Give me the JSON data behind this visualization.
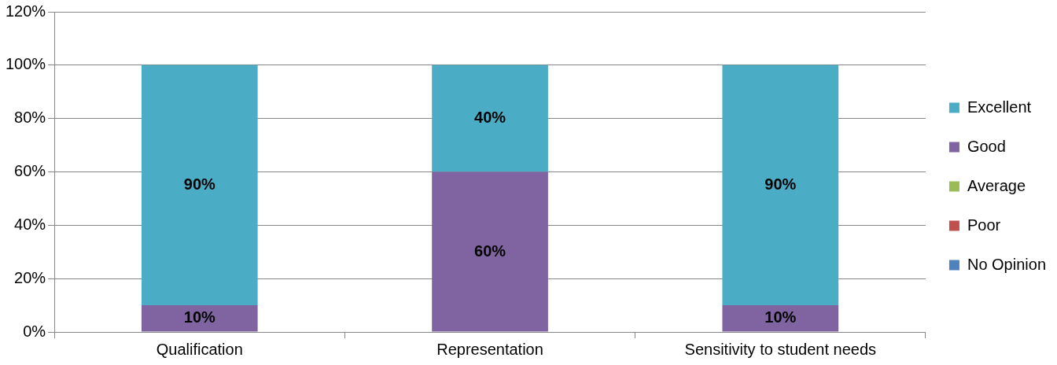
{
  "chart_data": {
    "type": "bar",
    "stacked": true,
    "categories": [
      "Qualification",
      "Representation",
      "Sensitivity to student needs"
    ],
    "series": [
      {
        "name": "No Opinion",
        "color": "#4f81bd",
        "values": [
          0,
          0,
          0
        ],
        "value_labels": [
          null,
          null,
          null
        ]
      },
      {
        "name": "Poor",
        "color": "#c0504d",
        "values": [
          0,
          0,
          0
        ],
        "value_labels": [
          null,
          null,
          null
        ]
      },
      {
        "name": "Average",
        "color": "#9bbb59",
        "values": [
          0,
          0,
          0
        ],
        "value_labels": [
          null,
          null,
          null
        ]
      },
      {
        "name": "Good",
        "color": "#8064a2",
        "values": [
          10,
          60,
          10
        ],
        "value_labels": [
          "10%",
          "60%",
          "10%"
        ]
      },
      {
        "name": "Excellent",
        "color": "#4bacc6",
        "values": [
          90,
          40,
          90
        ],
        "value_labels": [
          "90%",
          "40%",
          "90%"
        ]
      }
    ],
    "ylim": [
      0,
      120
    ],
    "yticks": [
      {
        "value": 0,
        "label": "0%"
      },
      {
        "value": 20,
        "label": "20%"
      },
      {
        "value": 40,
        "label": "40%"
      },
      {
        "value": 60,
        "label": "60%"
      },
      {
        "value": 80,
        "label": "80%"
      },
      {
        "value": 100,
        "label": "100%"
      },
      {
        "value": 120,
        "label": "120%"
      }
    ],
    "grid": "y",
    "legend": "right"
  }
}
